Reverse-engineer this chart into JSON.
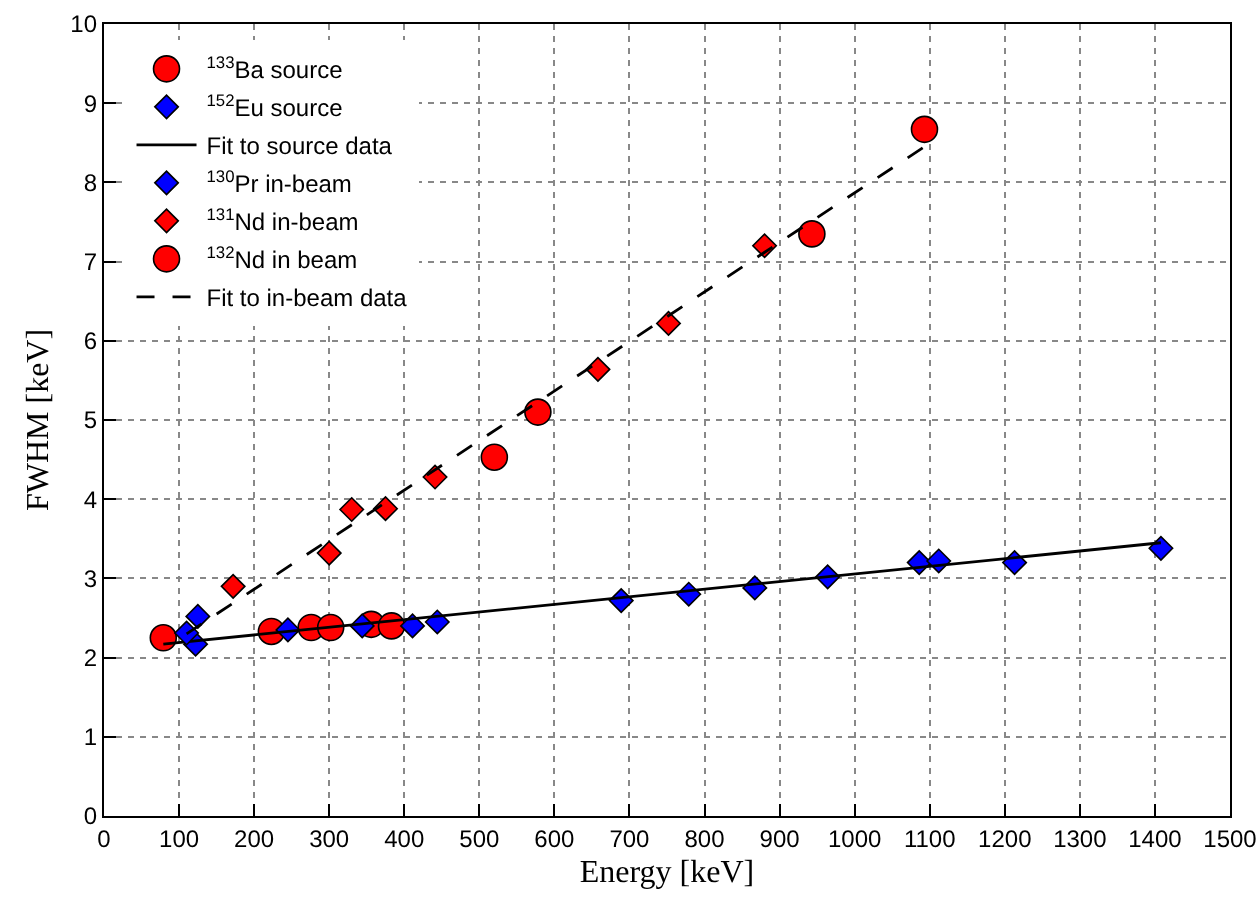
{
  "chart_data": {
    "type": "scatter",
    "xlabel": "Energy [keV]",
    "ylabel": "FWHM [keV]",
    "xlim": [
      0,
      1500
    ],
    "ylim": [
      0,
      10
    ],
    "xticks": [
      0,
      100,
      200,
      300,
      400,
      500,
      600,
      700,
      800,
      900,
      1000,
      1100,
      1200,
      1300,
      1400,
      1500
    ],
    "yticks": [
      0,
      1,
      2,
      3,
      4,
      5,
      6,
      7,
      8,
      9,
      10
    ],
    "grid": true,
    "legend": "top left",
    "series": [
      {
        "name": "$^{133}$Ba source",
        "marker": "circle",
        "color": "#ff0000",
        "x": [
          79,
          223,
          276,
          302,
          356,
          383
        ],
        "values": [
          2.25,
          2.33,
          2.38,
          2.38,
          2.42,
          2.4
        ]
      },
      {
        "name": "$^{152}$Eu source",
        "marker": "diamond",
        "color": "#0000ff",
        "x": [
          122,
          245,
          344,
          411,
          444,
          689,
          779,
          867,
          964,
          1086,
          1112,
          1213,
          1408
        ],
        "values": [
          2.17,
          2.35,
          2.4,
          2.4,
          2.45,
          2.72,
          2.8,
          2.88,
          3.02,
          3.2,
          3.22,
          3.2,
          3.38
        ]
      },
      {
        "name": "Fit to source data",
        "type": "line",
        "line_style": "solid",
        "color": "#000000",
        "x": [
          79,
          1408
        ],
        "values": [
          2.17,
          3.45
        ]
      },
      {
        "name": "$^{130}$Pr in-beam",
        "marker": "diamond",
        "color": "#0000ff",
        "x": [
          110,
          125
        ],
        "values": [
          2.31,
          2.52
        ]
      },
      {
        "name": "$^{131}$Nd in-beam",
        "marker": "diamond",
        "color": "#ff0000",
        "x": [
          172,
          300,
          330,
          375,
          441,
          658,
          752,
          880
        ],
        "values": [
          2.9,
          3.32,
          3.87,
          3.88,
          4.28,
          5.64,
          6.22,
          7.2
        ]
      },
      {
        "name": "$^{132}$Nd in beam",
        "marker": "circle",
        "color": "#ff0000",
        "x": [
          520,
          578,
          943,
          1093
        ],
        "values": [
          4.53,
          5.1,
          7.35,
          8.67
        ]
      },
      {
        "name": "Fit to in-beam data",
        "type": "line",
        "line_style": "dashed",
        "color": "#000000",
        "x": [
          110,
          1093
        ],
        "values": [
          2.3,
          8.45
        ]
      }
    ]
  }
}
